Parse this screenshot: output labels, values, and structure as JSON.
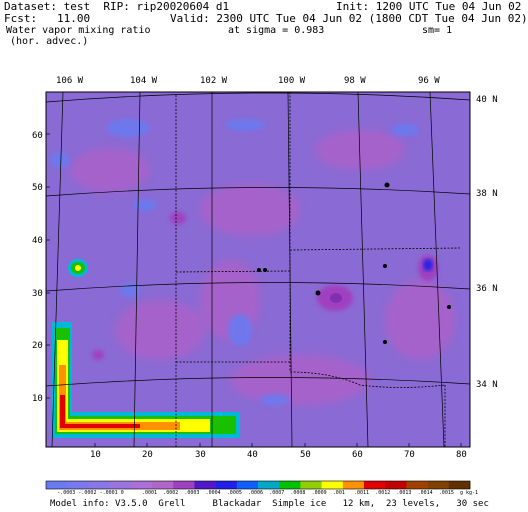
{
  "header": {
    "dataset": "Dataset: test  RIP: rip20020604 d1",
    "init": "Init: 1200 UTC Tue 04 Jun 02",
    "fcst": "Fcst:   11.00",
    "valid": "Valid: 2300 UTC Tue 04 Jun 02 (1800 CDT Tue 04 Jun 02)",
    "field": "Water vapor mixing ratio",
    "sigma": "at sigma = 0.983",
    "sm": "sm= 1",
    "advec": "(hor. advec.)"
  },
  "map": {
    "lon_labels": [
      "106 W",
      "104 W",
      "102 W",
      "100 W",
      "98 W",
      "96 W"
    ],
    "lat_labels": [
      "40 N",
      "38 N",
      "36 N",
      "34 N"
    ],
    "x_ticks": [
      "10",
      "20",
      "30",
      "40",
      "50",
      "60",
      "70",
      "80"
    ],
    "y_ticks": [
      "60",
      "50",
      "40",
      "30",
      "20",
      "10"
    ],
    "colors": {
      "background": "#8a6ad4",
      "low": "#6a7af0",
      "high_yellow": "#ffff00",
      "high_red": "#e00000",
      "high_green": "#18c000",
      "high_cyan": "#00b8d8",
      "purple": "#b060c8",
      "brown": "#804000"
    }
  },
  "colorbar": {
    "labels": [
      "-.0003",
      "-.0002",
      "-.0001",
      "0",
      ".0001",
      ".0002",
      ".0003",
      ".0004",
      ".0005",
      ".0006",
      ".0007",
      ".0008",
      ".0009",
      ".001",
      ".0011",
      ".0012",
      ".0013",
      ".0014",
      ".0015",
      "g kg-1"
    ],
    "colors": [
      "#6a7af0",
      "#7a78ee",
      "#8a76e8",
      "#9a74e0",
      "#aa6fd8",
      "#b066c8",
      "#a040c0",
      "#5018c8",
      "#2020e8",
      "#1060ff",
      "#00a8c8",
      "#00c000",
      "#90d000",
      "#ffff00",
      "#ff9000",
      "#e00000",
      "#c00000",
      "#a04000",
      "#804000",
      "#603000"
    ]
  },
  "footer": "Model info: V3.5.0  Grell     Blackadar  Simple ice   12 km,  23 levels,   30 sec"
}
